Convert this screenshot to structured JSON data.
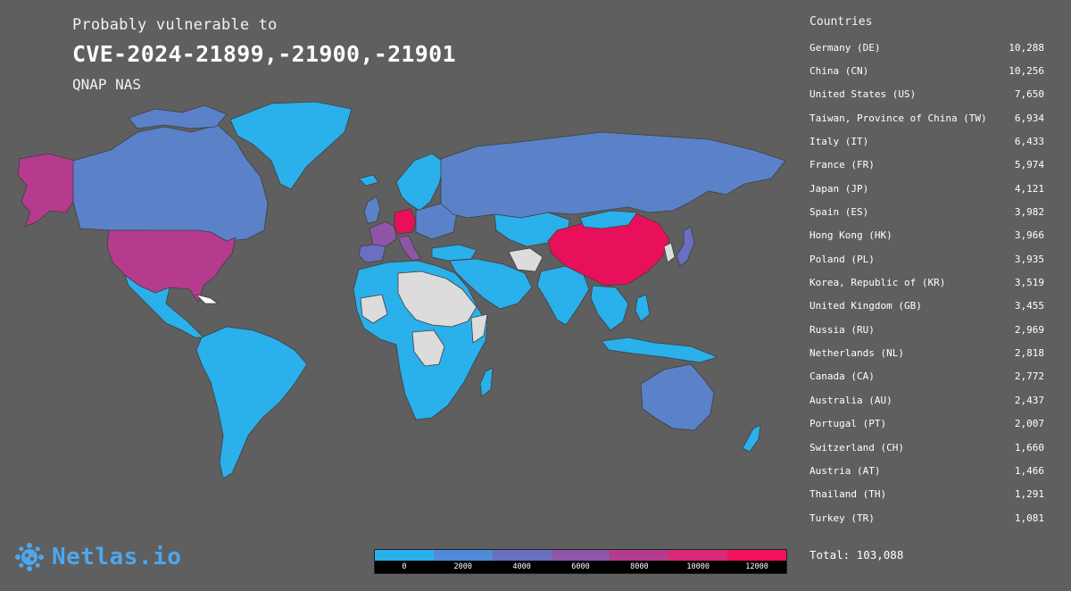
{
  "header": {
    "subtitle": "Probably vulnerable to",
    "title": "CVE-2024-21899,-21900,-21901",
    "product": "QNAP NAS"
  },
  "sidebar": {
    "heading": "Countries",
    "rows": [
      {
        "name": "Germany (DE)",
        "value": "10,288"
      },
      {
        "name": "China (CN)",
        "value": "10,256"
      },
      {
        "name": "United States (US)",
        "value": "7,650"
      },
      {
        "name": "Taiwan, Province of China (TW)",
        "value": "6,934"
      },
      {
        "name": "Italy (IT)",
        "value": "6,433"
      },
      {
        "name": "France (FR)",
        "value": "5,974"
      },
      {
        "name": "Japan (JP)",
        "value": "4,121"
      },
      {
        "name": "Spain (ES)",
        "value": "3,982"
      },
      {
        "name": "Hong Kong (HK)",
        "value": "3,966"
      },
      {
        "name": "Poland (PL)",
        "value": "3,935"
      },
      {
        "name": "Korea, Republic of (KR)",
        "value": "3,519"
      },
      {
        "name": "United Kingdom (GB)",
        "value": "3,455"
      },
      {
        "name": "Russia (RU)",
        "value": "2,969"
      },
      {
        "name": "Netherlands (NL)",
        "value": "2,818"
      },
      {
        "name": "Canada (CA)",
        "value": "2,772"
      },
      {
        "name": "Australia (AU)",
        "value": "2,437"
      },
      {
        "name": "Portugal (PT)",
        "value": "2,007"
      },
      {
        "name": "Switzerland (CH)",
        "value": "1,660"
      },
      {
        "name": "Austria (AT)",
        "value": "1,466"
      },
      {
        "name": "Thailand (TH)",
        "value": "1,291"
      },
      {
        "name": "Turkey (TR)",
        "value": "1,081"
      }
    ],
    "total": "Total: 103,088"
  },
  "logo": {
    "text": "Netlas.io",
    "icon": "netlas-logo-icon"
  },
  "legend": {
    "colors": [
      "#2ab0ea",
      "#4f8bd8",
      "#6a6fc0",
      "#8f55a8",
      "#b53b8e",
      "#d82876",
      "#f0125a"
    ],
    "labels": [
      "0",
      "2000",
      "4000",
      "6000",
      "8000",
      "10000",
      "12000"
    ]
  },
  "map_colors": {
    "background": "#5f5f5f",
    "no_data": "#dcdcdc",
    "level_0": "#2ab0ea",
    "level_2000": "#5b82c8",
    "level_4000": "#6a6fc0",
    "level_6000": "#8f55a8",
    "level_8000": "#b53b8e",
    "level_10000": "#e8105a"
  }
}
